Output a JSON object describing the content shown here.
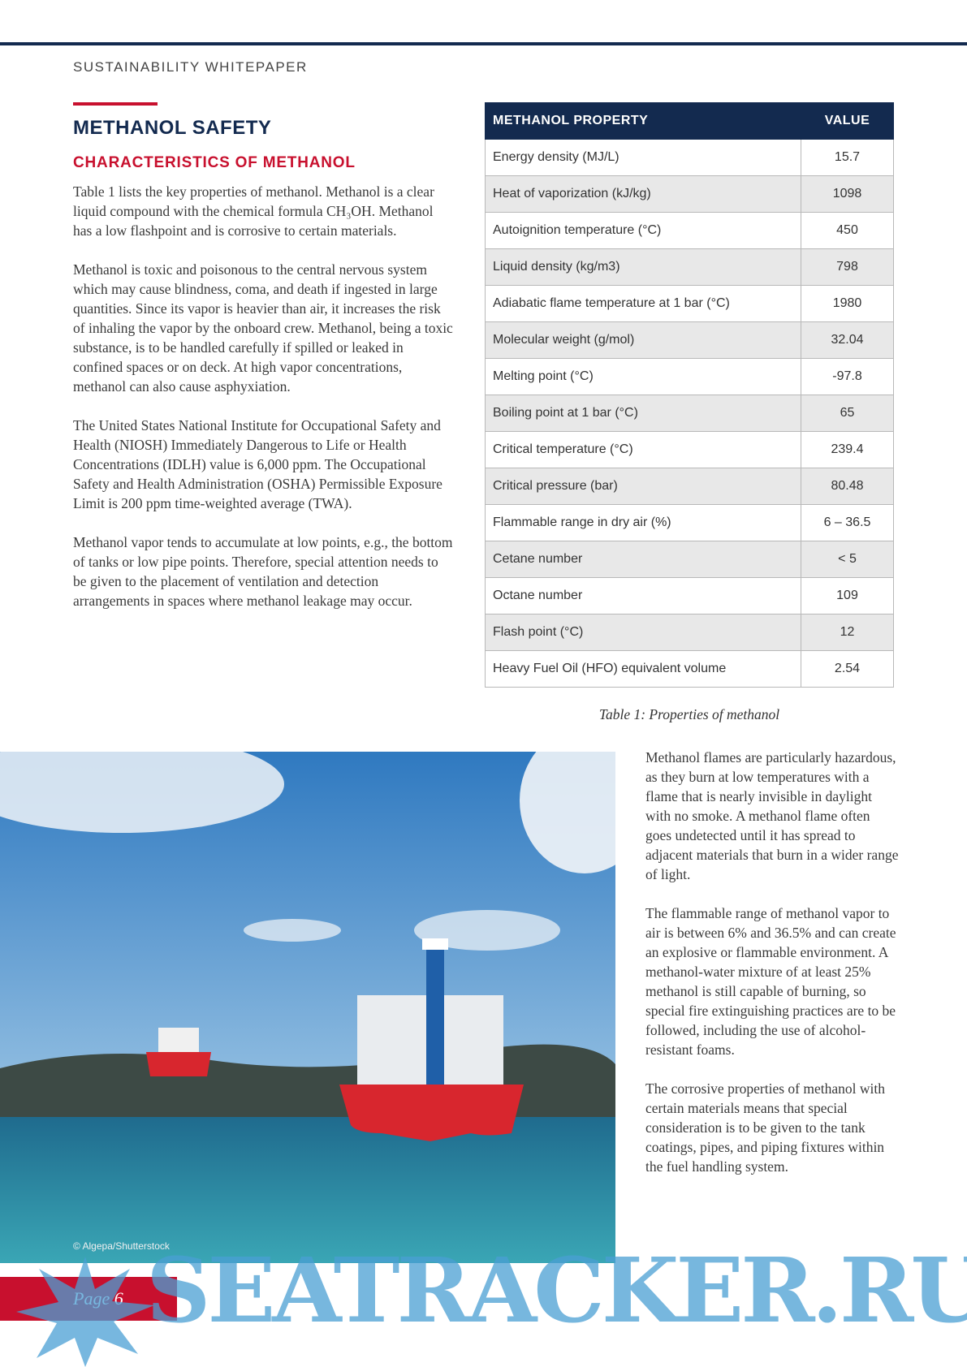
{
  "header": {
    "label": "SUSTAINABILITY WHITEPAPER"
  },
  "section": {
    "title": "METHANOL SAFETY",
    "subtitle": "CHARACTERISTICS OF METHANOL"
  },
  "left_paragraphs": [
    "Table 1 lists the key properties of methanol. Methanol is a clear liquid compound with the chemical formula CH₃OH. Methanol has a low flashpoint and is corrosive to certain materials.",
    "Methanol is toxic and poisonous to the central nervous system which may cause blindness, coma, and death if ingested in large quantities. Since its vapor is heavier than air, it increases the risk of inhaling the vapor by the onboard crew. Methanol, being a toxic substance, is to be handled carefully if spilled or leaked in confined spaces or on deck. At high vapor concentrations, methanol can also cause asphyxiation.",
    "The United States National Institute for Occupational Safety and Health (NIOSH) Immediately Dangerous to Life or Health Concentrations (IDLH) value is 6,000 ppm. The Occupational Safety and Health Administration (OSHA) Permissible Exposure Limit is 200 ppm time-weighted average (TWA).",
    "Methanol vapor tends to accumulate at low points, e.g., the bottom of tanks or low pipe points. Therefore, special attention needs to be given to the placement of ventilation and detection arrangements in spaces where methanol leakage may occur."
  ],
  "table": {
    "header": [
      "METHANOL PROPERTY",
      "VALUE"
    ],
    "rows": [
      [
        "Energy density (MJ/L)",
        "15.7"
      ],
      [
        "Heat of vaporization (kJ/kg)",
        "1098"
      ],
      [
        "Autoignition temperature (°C)",
        "450"
      ],
      [
        "Liquid density (kg/m3)",
        "798"
      ],
      [
        "Adiabatic flame temperature at 1 bar (°C)",
        "1980"
      ],
      [
        "Molecular weight (g/mol)",
        "32.04"
      ],
      [
        "Melting point (°C)",
        "-97.8"
      ],
      [
        "Boiling point at 1 bar (°C)",
        "65"
      ],
      [
        "Critical temperature (°C)",
        "239.4"
      ],
      [
        "Critical pressure (bar)",
        "80.48"
      ],
      [
        "Flammable range in dry air (%)",
        "6 – 36.5"
      ],
      [
        "Cetane number",
        "< 5"
      ],
      [
        "Octane number",
        "109"
      ],
      [
        "Flash point (°C)",
        "12"
      ],
      [
        "Heavy Fuel Oil (HFO) equivalent volume",
        "2.54"
      ]
    ],
    "caption": "Table 1: Properties of methanol"
  },
  "right_paragraphs": [
    "Methanol flames are particularly hazardous, as they burn at low temperatures with a flame that is nearly invisible in daylight with no smoke. A methanol flame often goes undetected until it has spread to adjacent materials that burn in a wider range of light.",
    "The flammable range of methanol vapor to air is between 6% and 36.5% and can create an explosive or flammable environment. A methanol-water mixture of at least 25% methanol is still capable of burning, so special fire extinguishing practices are to be followed, including the use of alcohol-resistant foams.",
    "The corrosive properties of methanol with certain materials means that special consideration is to be given to the tank coatings, pipes, and piping fixtures within the fuel handling system."
  ],
  "photo": {
    "credit": "© Algepa/Shutterstock"
  },
  "footer": {
    "page": "Page 6"
  },
  "watermark": {
    "text": "SEATRACKER.RU"
  }
}
